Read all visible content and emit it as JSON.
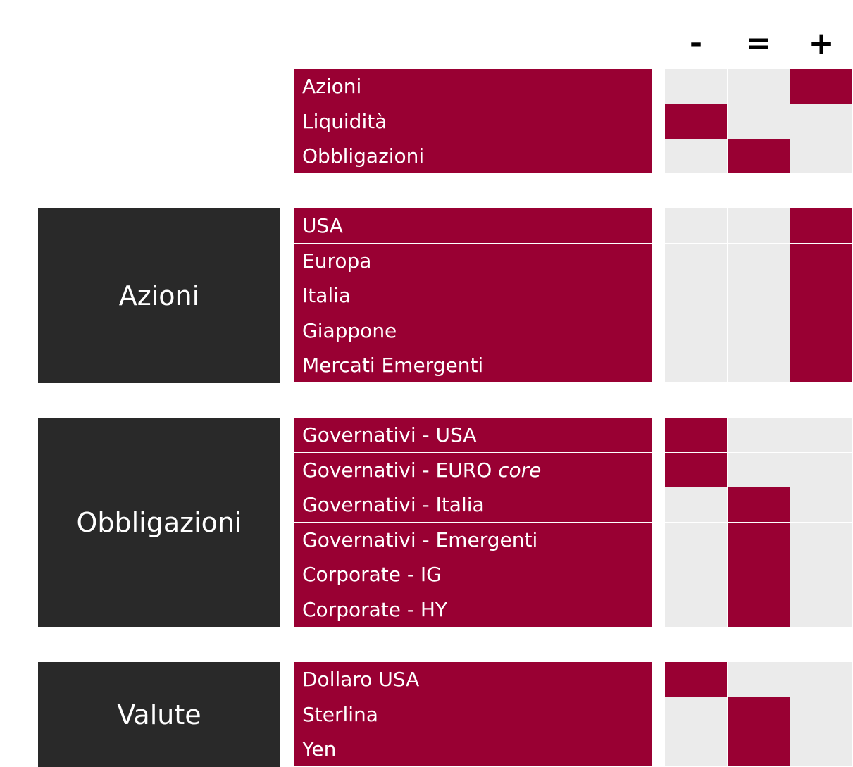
{
  "header": {
    "minus": "-",
    "equal": "=",
    "plus": "+"
  },
  "colors": {
    "accent": "#990033",
    "group_bg": "#292929",
    "empty_cell": "#EBEBEB"
  },
  "groups": [
    {
      "label": "",
      "rows": [
        {
          "label": "Azioni",
          "label_suffix": "",
          "rating": "+"
        },
        {
          "label": "Liquidità",
          "label_suffix": "",
          "rating": "-"
        },
        {
          "label": "Obbligazioni",
          "label_suffix": "",
          "rating": "="
        }
      ]
    },
    {
      "label": "Azioni",
      "rows": [
        {
          "label": "USA",
          "label_suffix": "",
          "rating": "+"
        },
        {
          "label": "Europa",
          "label_suffix": "",
          "rating": "+"
        },
        {
          "label": "Italia",
          "label_suffix": "",
          "rating": "+"
        },
        {
          "label": "Giappone",
          "label_suffix": "",
          "rating": "+"
        },
        {
          "label": "Mercati Emergenti",
          "label_suffix": "",
          "rating": "+"
        }
      ]
    },
    {
      "label": "Obbligazioni",
      "rows": [
        {
          "label": "Governativi - USA",
          "label_suffix": "",
          "rating": "-"
        },
        {
          "label": "Governativi - EURO ",
          "label_suffix": "core",
          "rating": "-"
        },
        {
          "label": "Governativi - Italia",
          "label_suffix": "",
          "rating": "="
        },
        {
          "label": "Governativi - Emergenti",
          "label_suffix": "",
          "rating": "="
        },
        {
          "label": "Corporate - IG",
          "label_suffix": "",
          "rating": "="
        },
        {
          "label": "Corporate - HY",
          "label_suffix": "",
          "rating": "="
        }
      ]
    },
    {
      "label": "Valute",
      "rows": [
        {
          "label": "Dollaro USA",
          "label_suffix": "",
          "rating": "-"
        },
        {
          "label": "Sterlina",
          "label_suffix": "",
          "rating": "="
        },
        {
          "label": "Yen",
          "label_suffix": "",
          "rating": "="
        }
      ]
    }
  ]
}
